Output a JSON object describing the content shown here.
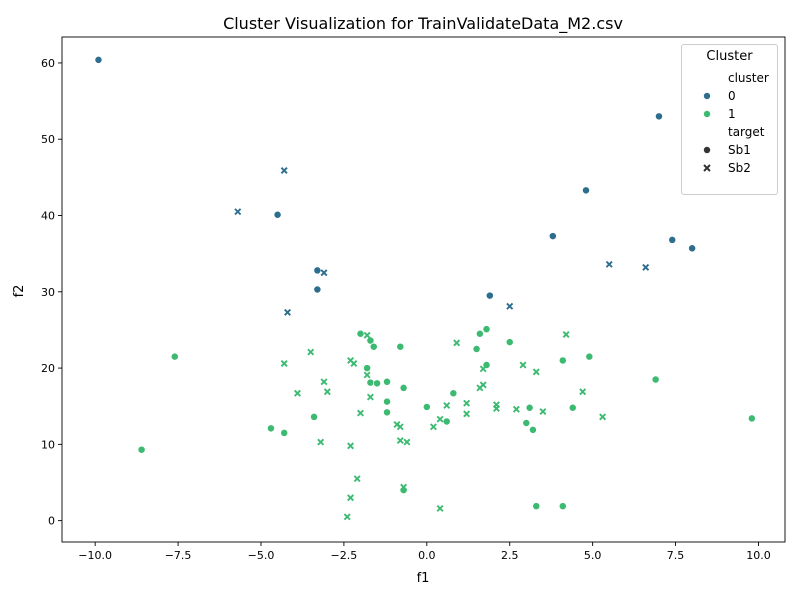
{
  "chart_data": {
    "type": "scatter",
    "title": "Cluster Visualization for TrainValidateData_M2.csv",
    "xlabel": "f1",
    "ylabel": "f2",
    "xlim": [
      -11.0,
      10.8
    ],
    "ylim": [
      -2.8,
      63.4
    ],
    "xticks": [
      -10.0,
      -7.5,
      -5.0,
      -2.5,
      0.0,
      2.5,
      5.0,
      7.5,
      10.0
    ],
    "xtick_labels": [
      "−10.0",
      "−7.5",
      "−5.0",
      "−2.5",
      "0.0",
      "2.5",
      "5.0",
      "7.5",
      "10.0"
    ],
    "yticks": [
      0,
      10,
      20,
      30,
      40,
      50,
      60
    ],
    "ytick_labels": [
      "0",
      "10",
      "20",
      "30",
      "40",
      "50",
      "60"
    ],
    "grid": false,
    "legend": {
      "title": "Cluster",
      "placement": "top-right",
      "hue_header": "cluster",
      "hue_entries": [
        {
          "label": "0",
          "color": "#2d6e8e"
        },
        {
          "label": "1",
          "color": "#3dba72"
        }
      ],
      "style_header": "target",
      "style_entries": [
        {
          "label": "Sb1",
          "marker": "circle"
        },
        {
          "label": "Sb2",
          "marker": "x"
        }
      ]
    },
    "series": [
      {
        "cluster": "0",
        "target": "Sb1",
        "color": "#2d6e8e",
        "marker": "circle",
        "points": [
          [
            -9.9,
            60.4
          ],
          [
            -4.5,
            40.1
          ],
          [
            -3.3,
            32.8
          ],
          [
            -3.3,
            30.3
          ],
          [
            1.9,
            29.5
          ],
          [
            3.8,
            37.3
          ],
          [
            4.8,
            43.3
          ],
          [
            7.0,
            53.0
          ],
          [
            7.4,
            36.8
          ],
          [
            8.0,
            35.7
          ]
        ]
      },
      {
        "cluster": "0",
        "target": "Sb2",
        "color": "#2d6e8e",
        "marker": "x",
        "points": [
          [
            -5.7,
            40.5
          ],
          [
            -4.3,
            45.9
          ],
          [
            -4.2,
            27.3
          ],
          [
            -3.1,
            32.5
          ],
          [
            2.5,
            28.1
          ],
          [
            5.5,
            33.6
          ],
          [
            6.6,
            33.2
          ]
        ]
      },
      {
        "cluster": "1",
        "target": "Sb1",
        "color": "#3dba72",
        "marker": "circle",
        "points": [
          [
            -8.6,
            9.3
          ],
          [
            -7.6,
            21.5
          ],
          [
            -4.7,
            12.1
          ],
          [
            -4.3,
            11.5
          ],
          [
            -3.4,
            13.6
          ],
          [
            -2.0,
            24.5
          ],
          [
            -1.8,
            20.0
          ],
          [
            -1.7,
            18.1
          ],
          [
            -1.7,
            23.6
          ],
          [
            -1.6,
            22.8
          ],
          [
            -1.5,
            18.0
          ],
          [
            -1.2,
            18.2
          ],
          [
            -1.2,
            15.6
          ],
          [
            -1.2,
            14.2
          ],
          [
            -0.8,
            22.8
          ],
          [
            -0.7,
            17.4
          ],
          [
            -0.7,
            4.0
          ],
          [
            0.0,
            14.9
          ],
          [
            0.6,
            13.0
          ],
          [
            0.8,
            16.7
          ],
          [
            1.5,
            22.5
          ],
          [
            1.6,
            24.5
          ],
          [
            1.8,
            25.1
          ],
          [
            1.8,
            20.4
          ],
          [
            2.5,
            23.4
          ],
          [
            3.0,
            12.8
          ],
          [
            3.1,
            14.8
          ],
          [
            3.2,
            11.9
          ],
          [
            3.3,
            1.9
          ],
          [
            4.1,
            21.0
          ],
          [
            4.1,
            1.9
          ],
          [
            4.4,
            14.8
          ],
          [
            4.9,
            21.5
          ],
          [
            6.9,
            18.5
          ],
          [
            9.8,
            13.4
          ]
        ]
      },
      {
        "cluster": "1",
        "target": "Sb2",
        "color": "#3dba72",
        "marker": "x",
        "points": [
          [
            -4.3,
            20.6
          ],
          [
            -3.9,
            16.7
          ],
          [
            -3.5,
            22.1
          ],
          [
            -3.2,
            10.3
          ],
          [
            -3.1,
            18.2
          ],
          [
            -3.0,
            16.9
          ],
          [
            -2.3,
            21.0
          ],
          [
            -2.2,
            20.6
          ],
          [
            -2.3,
            9.8
          ],
          [
            -2.1,
            5.5
          ],
          [
            -2.3,
            3.0
          ],
          [
            -2.4,
            0.5
          ],
          [
            -2.0,
            14.1
          ],
          [
            -1.8,
            24.3
          ],
          [
            -1.8,
            19.1
          ],
          [
            -1.7,
            16.2
          ],
          [
            -0.9,
            12.6
          ],
          [
            -0.8,
            12.3
          ],
          [
            -0.8,
            10.5
          ],
          [
            -0.6,
            10.3
          ],
          [
            -0.7,
            4.4
          ],
          [
            0.2,
            12.3
          ],
          [
            0.4,
            13.3
          ],
          [
            0.4,
            1.6
          ],
          [
            0.6,
            15.1
          ],
          [
            0.9,
            23.3
          ],
          [
            1.2,
            15.4
          ],
          [
            1.2,
            14.0
          ],
          [
            1.6,
            17.4
          ],
          [
            1.7,
            17.8
          ],
          [
            1.7,
            19.9
          ],
          [
            2.1,
            15.2
          ],
          [
            2.1,
            14.7
          ],
          [
            2.7,
            14.6
          ],
          [
            2.9,
            20.4
          ],
          [
            3.3,
            19.5
          ],
          [
            3.5,
            14.3
          ],
          [
            4.2,
            24.4
          ],
          [
            4.7,
            16.9
          ],
          [
            5.3,
            13.6
          ]
        ]
      }
    ]
  }
}
